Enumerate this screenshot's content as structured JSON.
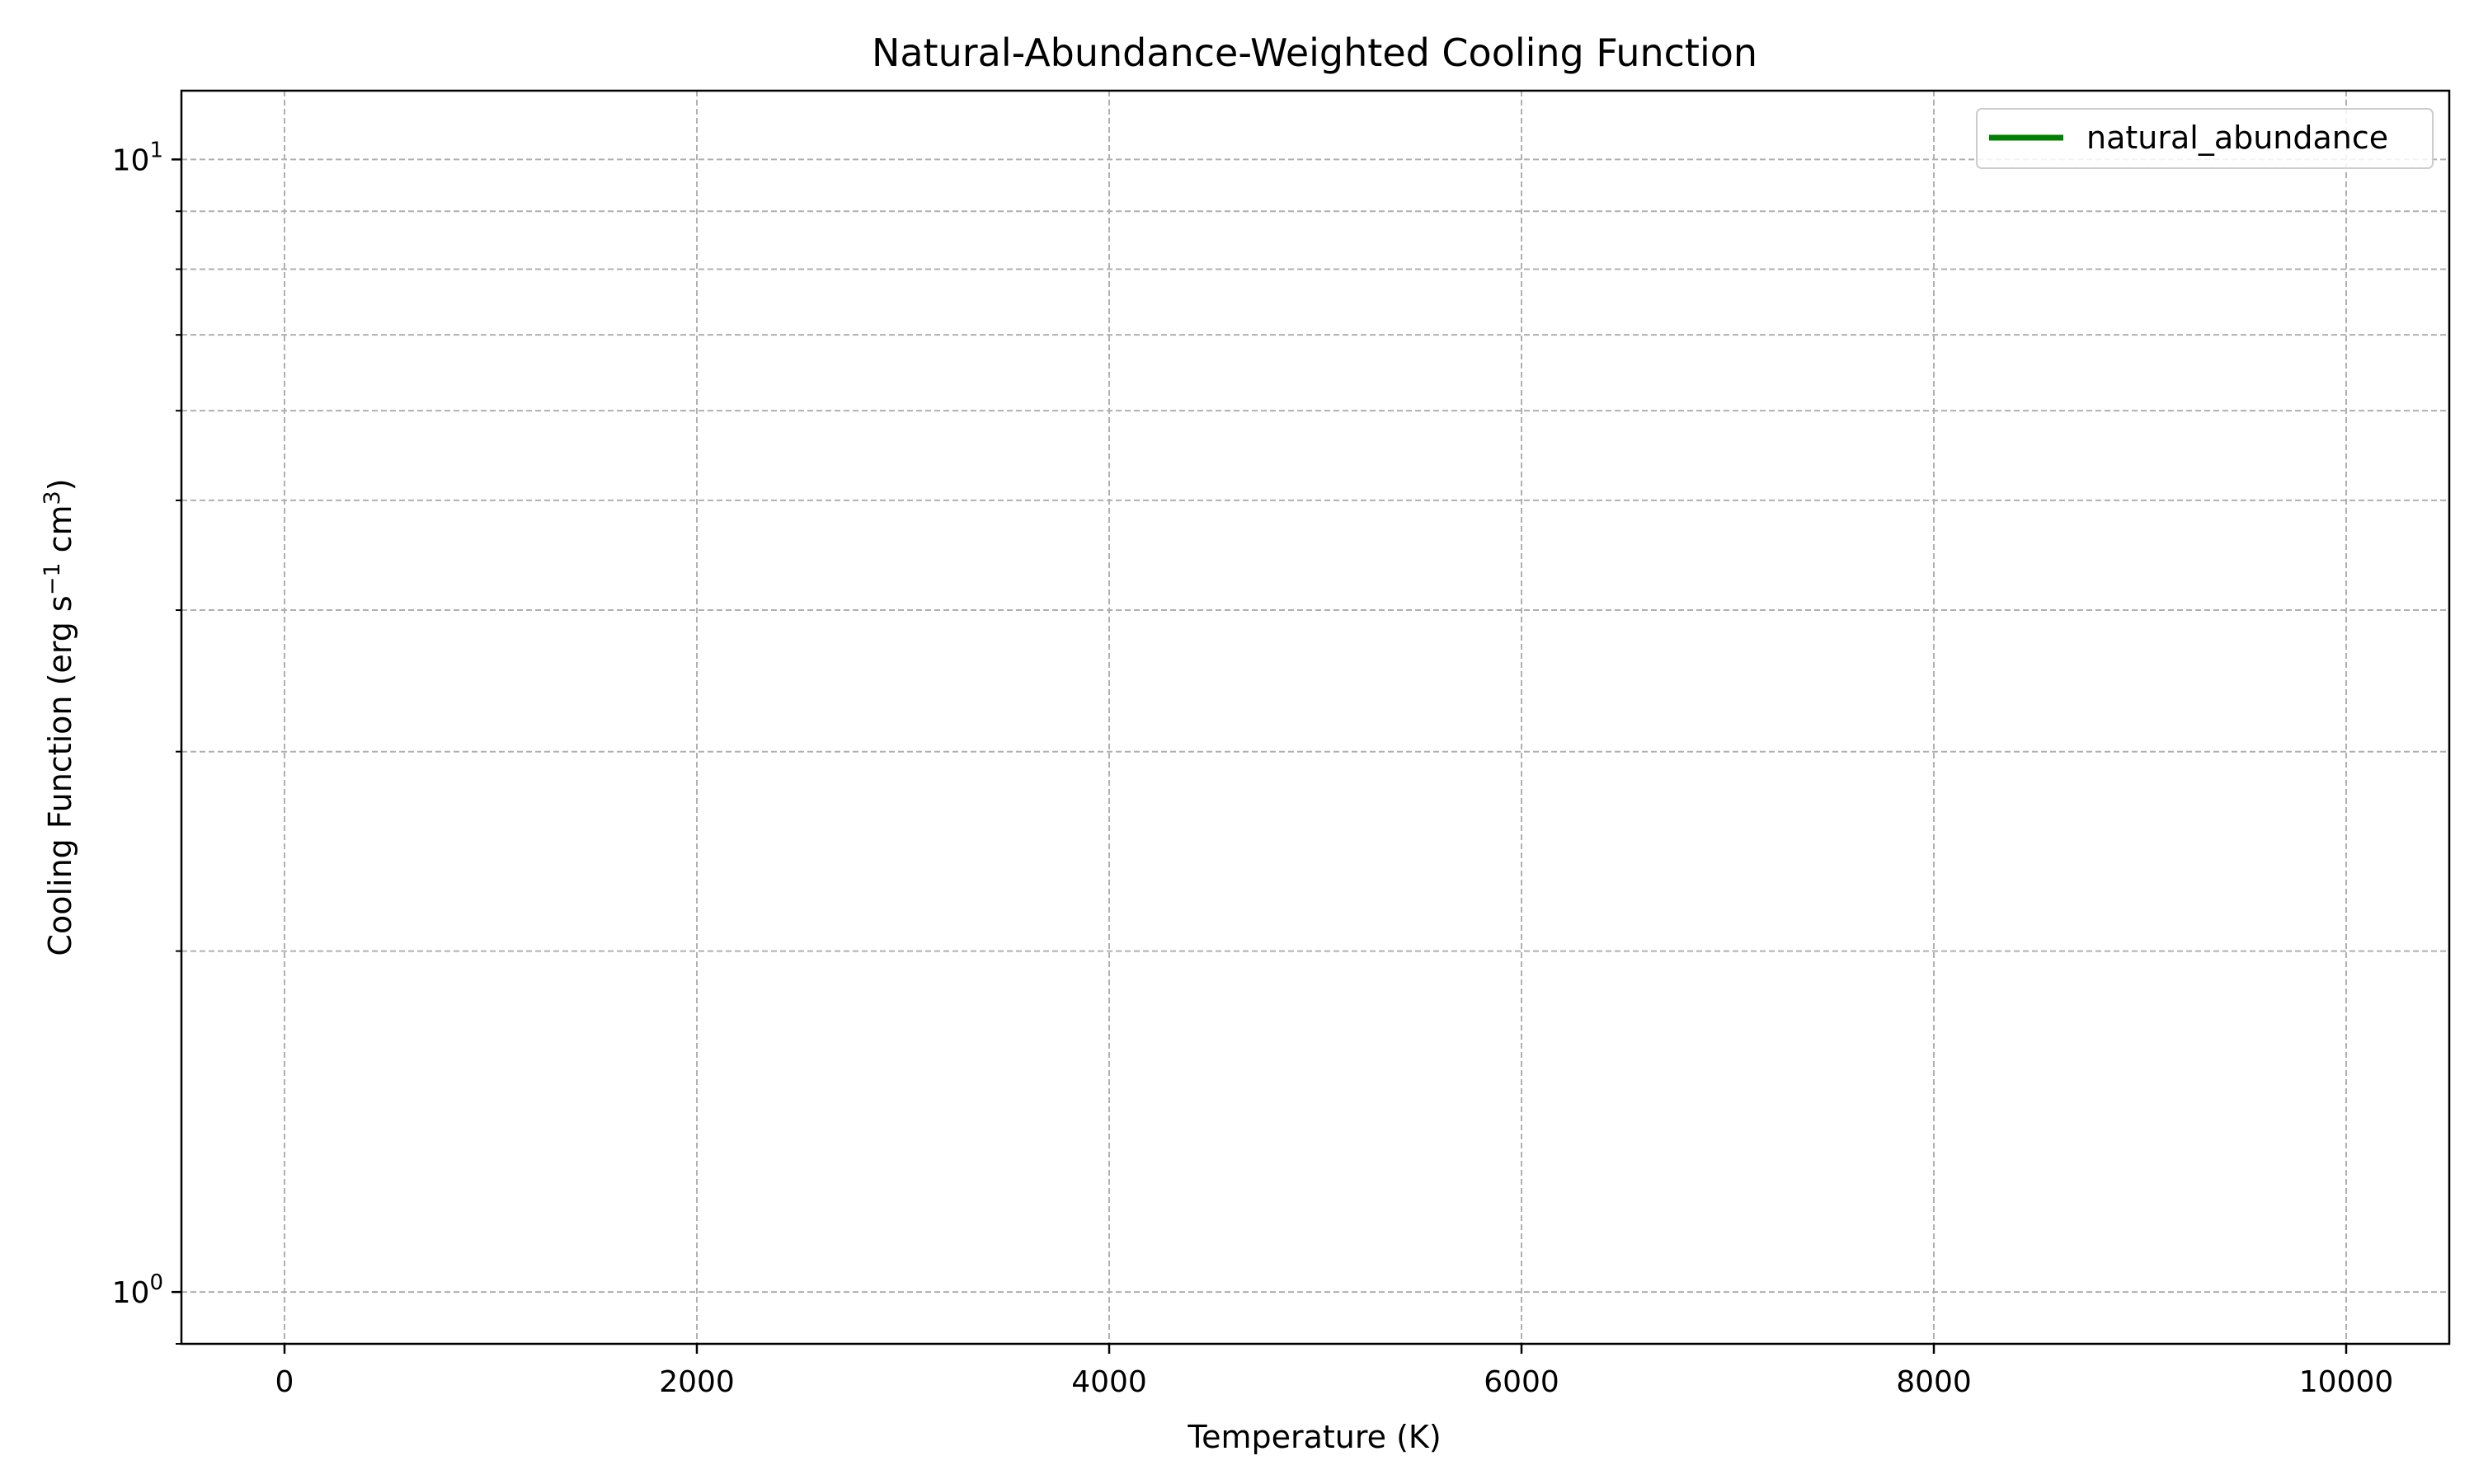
{
  "chart_data": {
    "type": "line",
    "title": "Natural-Abundance-Weighted Cooling Function",
    "xlabel": "Temperature (K)",
    "ylabel": {
      "base": "Cooling Function (erg s",
      "exp1": "−1",
      "mid": " cm",
      "exp2": "3",
      "end": ")"
    },
    "xlim": [
      -500,
      10500
    ],
    "ylim": [
      0.9,
      11.5
    ],
    "yscale": "log",
    "grid": true,
    "grid_style": "dashed",
    "legend_position": "top-right",
    "x_ticks": [
      {
        "value": 0,
        "label": "0"
      },
      {
        "value": 2000,
        "label": "2000"
      },
      {
        "value": 4000,
        "label": "4000"
      },
      {
        "value": 6000,
        "label": "6000"
      },
      {
        "value": 8000,
        "label": "8000"
      },
      {
        "value": 10000,
        "label": "10000"
      }
    ],
    "y_major_ticks": [
      {
        "value": 1,
        "base": "10",
        "exp": "0"
      },
      {
        "value": 10,
        "base": "10",
        "exp": "1"
      }
    ],
    "y_minor_ticks": [
      0.9,
      2,
      3,
      4,
      5,
      6,
      7,
      8,
      9
    ],
    "series": [
      {
        "name": "natural_abundance",
        "color": "#008000",
        "x": [],
        "y": []
      }
    ]
  }
}
